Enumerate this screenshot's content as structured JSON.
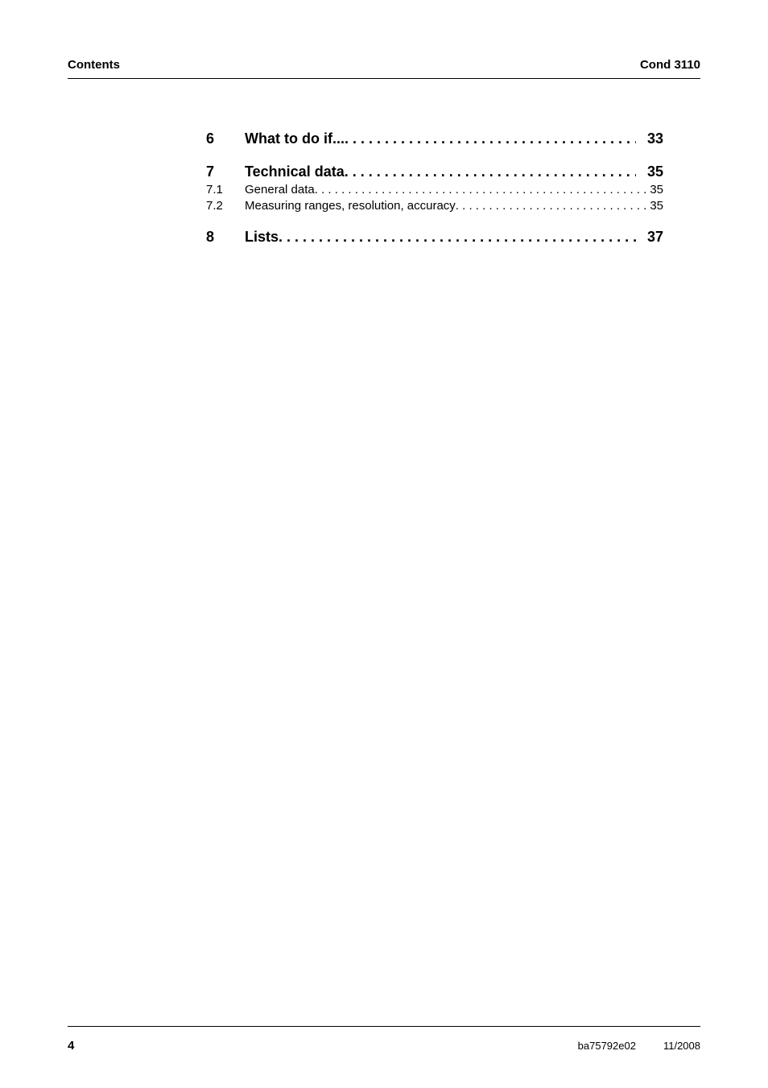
{
  "header": {
    "left": "Contents",
    "right": "Cond 3110"
  },
  "toc": [
    {
      "type": "section",
      "num": "6",
      "title": "What to do if...",
      "page": "33"
    },
    {
      "type": "section",
      "num": "7",
      "title": "Technical data",
      "page": "35"
    },
    {
      "type": "sub",
      "num": "7.1",
      "title": "General data",
      "page": "35"
    },
    {
      "type": "sub",
      "num": "7.2",
      "title": "Measuring ranges, resolution, accuracy",
      "page": "35"
    },
    {
      "type": "section",
      "num": "8",
      "title": "Lists",
      "page": "37"
    }
  ],
  "footer": {
    "page": "4",
    "doc": "ba75792e02",
    "date": "11/2008"
  }
}
